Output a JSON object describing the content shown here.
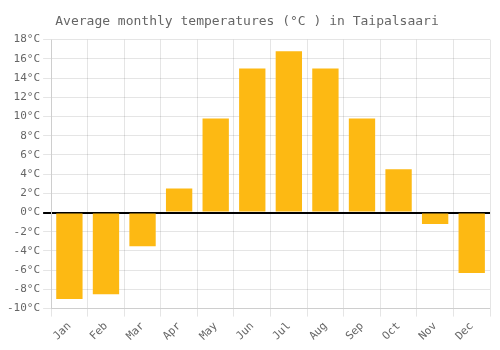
{
  "chart_data": {
    "type": "bar",
    "title": "Average monthly temperatures (°C ) in Taipalsaari",
    "categories": [
      "Jan",
      "Feb",
      "Mar",
      "Apr",
      "May",
      "Jun",
      "Jul",
      "Aug",
      "Sep",
      "Oct",
      "Nov",
      "Dec"
    ],
    "values": [
      -9,
      -8.5,
      -3.5,
      2.5,
      9.8,
      15.0,
      16.8,
      15.0,
      9.8,
      4.5,
      -1.2,
      -6.3
    ],
    "color": "#FDB913",
    "ylim": [
      -10,
      18
    ],
    "yticks": [
      {
        "value": -10,
        "label": "-10°C"
      },
      {
        "value": -8,
        "label": "-8°C"
      },
      {
        "value": -6,
        "label": "-6°C"
      },
      {
        "value": -4,
        "label": "-4°C"
      },
      {
        "value": -2,
        "label": "-2°C"
      },
      {
        "value": 0,
        "label": "0°C"
      },
      {
        "value": 2,
        "label": "2°C"
      },
      {
        "value": 4,
        "label": "4°C"
      },
      {
        "value": 6,
        "label": "6°C"
      },
      {
        "value": 8,
        "label": "8°C"
      },
      {
        "value": 10,
        "label": "10°C"
      },
      {
        "value": 12,
        "label": "12°C"
      },
      {
        "value": 14,
        "label": "14°C"
      },
      {
        "value": 16,
        "label": "16°C"
      },
      {
        "value": 18,
        "label": "18°C"
      }
    ],
    "grid": true
  }
}
